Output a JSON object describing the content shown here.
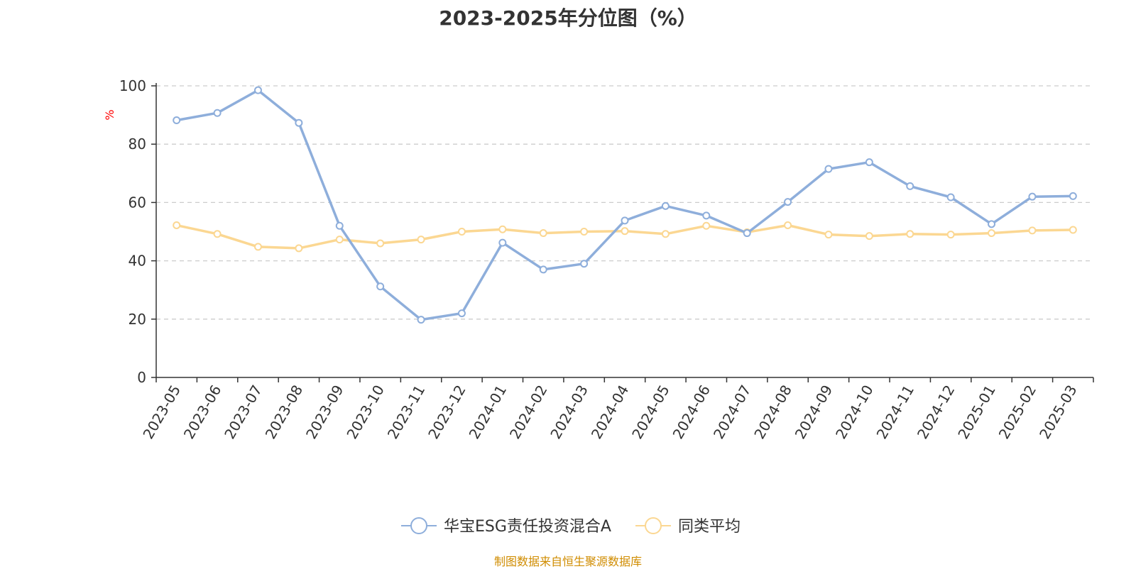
{
  "chart_data": {
    "type": "line",
    "title": "2023-2025年分位图（%）",
    "ylabel": "%",
    "xlabel": "",
    "ylim": [
      0,
      100
    ],
    "yticks": [
      0,
      20,
      40,
      60,
      80,
      100
    ],
    "grid": "horizontal dashed",
    "legend_position": "bottom",
    "categories": [
      "2023-05",
      "2023-06",
      "2023-07",
      "2023-08",
      "2023-09",
      "2023-10",
      "2023-11",
      "2023-12",
      "2024-01",
      "2024-02",
      "2024-03",
      "2024-04",
      "2024-05",
      "2024-06",
      "2024-07",
      "2024-08",
      "2024-09",
      "2024-10",
      "2024-11",
      "2024-12",
      "2025-01",
      "2025-02",
      "2025-03"
    ],
    "series": [
      {
        "name": "华宝ESG责任投资混合A",
        "color": "#8eaedb",
        "values": [
          88.2,
          90.7,
          98.5,
          87.3,
          52.0,
          31.2,
          19.8,
          22.0,
          46.2,
          37.0,
          39.0,
          53.8,
          58.8,
          55.5,
          49.5,
          60.2,
          71.5,
          73.8,
          65.6,
          61.8,
          52.6,
          62.0,
          62.2
        ]
      },
      {
        "name": "同类平均",
        "color": "#fbd792",
        "values": [
          52.2,
          49.2,
          44.8,
          44.3,
          47.3,
          46.0,
          47.3,
          50.0,
          50.8,
          49.5,
          50.0,
          50.2,
          49.2,
          52.0,
          49.8,
          52.2,
          49.0,
          48.5,
          49.2,
          49.0,
          49.5,
          50.4,
          50.6
        ]
      }
    ],
    "source": "制图数据来自恒生聚源数据库"
  }
}
